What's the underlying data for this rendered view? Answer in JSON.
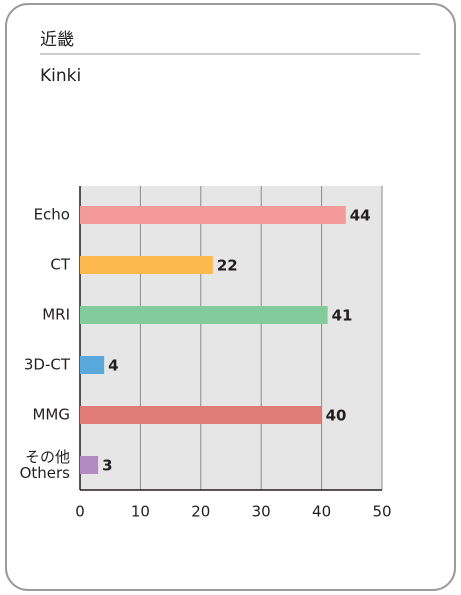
{
  "chart_data": {
    "type": "hbar",
    "title": "近畿",
    "subtitle": "Kinki",
    "categories": [
      "Echo",
      "CT",
      "MRI",
      "3D-CT",
      "MMG",
      "その他\nOthers"
    ],
    "values": [
      44,
      22,
      41,
      4,
      40,
      3
    ],
    "colors": [
      "#f49a9a",
      "#fdb94e",
      "#82cc9b",
      "#5aa9dd",
      "#e07b76",
      "#b28bc3"
    ],
    "xlim": [
      0,
      50
    ],
    "xticks": [
      0,
      10,
      20,
      30,
      40,
      50
    ],
    "grid": true
  }
}
